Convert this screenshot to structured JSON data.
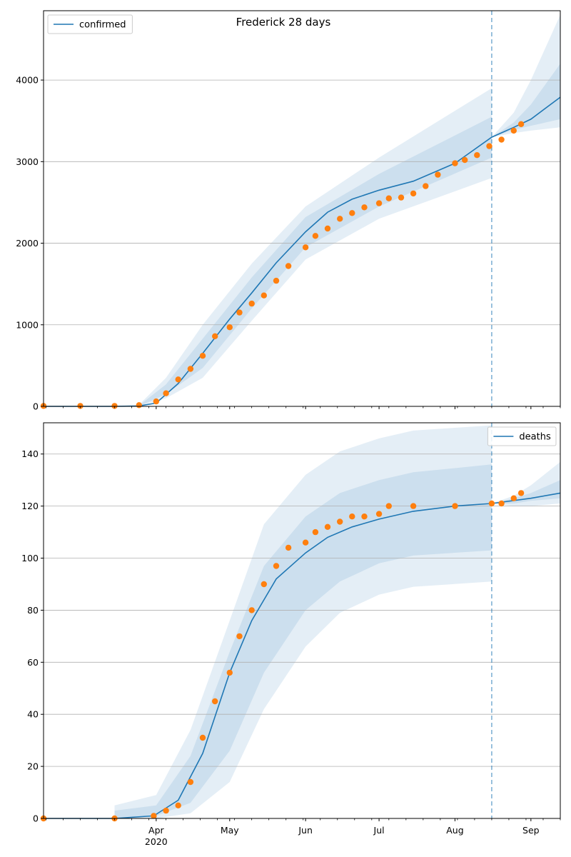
{
  "figure_title": "Frederick 28 days",
  "colors": {
    "model_line": "#1f77b4",
    "observed_points": "#ff7f0e",
    "band": "#1f77b4",
    "forecast_marker": "#1f77b4",
    "grid": "#b0b0b0"
  },
  "chart_data": [
    {
      "type": "line",
      "panel": "top",
      "title": "Frederick 28 days",
      "xlabel": "",
      "ylabel": "",
      "ylim": [
        0,
        4850
      ],
      "yticks": [
        0,
        1000,
        2000,
        3000,
        4000
      ],
      "grid": "horizontal",
      "legend": "top-left",
      "forecast_start": "2020-08-16",
      "series": [
        {
          "name": "confirmed",
          "kind": "model",
          "x": [
            "2020-02-15",
            "2020-03-01",
            "2020-03-15",
            "2020-03-25",
            "2020-04-01",
            "2020-04-10",
            "2020-04-20",
            "2020-05-01",
            "2020-05-10",
            "2020-05-20",
            "2020-06-01",
            "2020-06-10",
            "2020-06-20",
            "2020-07-01",
            "2020-07-15",
            "2020-08-01",
            "2020-08-16",
            "2020-08-25",
            "2020-09-01",
            "2020-09-13"
          ],
          "values": [
            0,
            0,
            0,
            5,
            40,
            280,
            650,
            1070,
            1390,
            1760,
            2140,
            2380,
            2540,
            2650,
            2760,
            2980,
            3300,
            3420,
            3520,
            3790
          ]
        },
        {
          "name": "",
          "kind": "observed",
          "x": [
            "2020-02-15",
            "2020-03-01",
            "2020-03-15",
            "2020-03-25",
            "2020-04-01",
            "2020-04-05",
            "2020-04-10",
            "2020-04-15",
            "2020-04-20",
            "2020-04-25",
            "2020-05-01",
            "2020-05-05",
            "2020-05-10",
            "2020-05-15",
            "2020-05-20",
            "2020-05-25",
            "2020-06-01",
            "2020-06-05",
            "2020-06-10",
            "2020-06-15",
            "2020-06-20",
            "2020-06-25",
            "2020-07-01",
            "2020-07-05",
            "2020-07-10",
            "2020-07-15",
            "2020-07-20",
            "2020-07-25",
            "2020-08-01",
            "2020-08-05",
            "2020-08-10",
            "2020-08-15",
            "2020-08-20",
            "2020-08-25",
            "2020-08-28"
          ],
          "values": [
            5,
            5,
            5,
            15,
            60,
            160,
            330,
            460,
            620,
            860,
            970,
            1150,
            1260,
            1360,
            1540,
            1720,
            1950,
            2090,
            2180,
            2300,
            2370,
            2440,
            2490,
            2550,
            2560,
            2610,
            2700,
            2840,
            2980,
            3020,
            3080,
            3190,
            3270,
            3380,
            3460
          ]
        }
      ],
      "bands": [
        {
          "x": [
            "2020-03-25",
            "2020-04-05",
            "2020-04-20",
            "2020-05-10",
            "2020-06-01",
            "2020-07-01",
            "2020-08-16"
          ],
          "lower": [
            0,
            100,
            350,
            1050,
            1800,
            2300,
            2800
          ],
          "upper": [
            20,
            350,
            1000,
            1750,
            2450,
            3050,
            3900
          ]
        },
        {
          "x": [
            "2020-03-25",
            "2020-04-05",
            "2020-04-20",
            "2020-05-10",
            "2020-06-01",
            "2020-07-01",
            "2020-08-16"
          ],
          "lower": [
            0,
            150,
            470,
            1200,
            1950,
            2450,
            3050
          ],
          "upper": [
            10,
            270,
            830,
            1580,
            2320,
            2850,
            3550
          ]
        },
        {
          "x": [
            "2020-08-16",
            "2020-08-25",
            "2020-09-01",
            "2020-09-13"
          ],
          "lower": [
            3300,
            3350,
            3380,
            3420
          ],
          "upper": [
            3300,
            3600,
            4000,
            4800
          ]
        },
        {
          "x": [
            "2020-08-16",
            "2020-08-25",
            "2020-09-01",
            "2020-09-13"
          ],
          "lower": [
            3300,
            3390,
            3440,
            3520
          ],
          "upper": [
            3300,
            3480,
            3700,
            4200
          ]
        }
      ],
      "x_ticks": [
        {
          "date": "2020-04-01",
          "label": "Apr",
          "sublabel": "2020"
        },
        {
          "date": "2020-05-01",
          "label": "May",
          "sublabel": ""
        },
        {
          "date": "2020-06-01",
          "label": "Jun",
          "sublabel": ""
        },
        {
          "date": "2020-07-01",
          "label": "Jul",
          "sublabel": ""
        },
        {
          "date": "2020-08-01",
          "label": "Aug",
          "sublabel": ""
        },
        {
          "date": "2020-09-01",
          "label": "Sep",
          "sublabel": ""
        }
      ],
      "show_x_labels": false
    },
    {
      "type": "line",
      "panel": "bottom",
      "title": "",
      "xlabel": "",
      "ylabel": "",
      "ylim": [
        0,
        152
      ],
      "yticks": [
        0,
        20,
        40,
        60,
        80,
        100,
        120,
        140
      ],
      "grid": "horizontal",
      "legend": "top-right",
      "forecast_start": "2020-08-16",
      "series": [
        {
          "name": "deaths",
          "kind": "model",
          "x": [
            "2020-02-15",
            "2020-03-15",
            "2020-03-31",
            "2020-04-10",
            "2020-04-20",
            "2020-05-01",
            "2020-05-10",
            "2020-05-20",
            "2020-06-01",
            "2020-06-10",
            "2020-06-20",
            "2020-07-01",
            "2020-07-15",
            "2020-08-01",
            "2020-08-16",
            "2020-09-01",
            "2020-09-13"
          ],
          "values": [
            0,
            0,
            1,
            7,
            25,
            56,
            76,
            92,
            102,
            108,
            112,
            115,
            118,
            120,
            121,
            123,
            125
          ]
        },
        {
          "name": "",
          "kind": "observed",
          "x": [
            "2020-02-15",
            "2020-03-15",
            "2020-03-31",
            "2020-04-05",
            "2020-04-10",
            "2020-04-15",
            "2020-04-20",
            "2020-04-25",
            "2020-05-01",
            "2020-05-05",
            "2020-05-10",
            "2020-05-15",
            "2020-05-20",
            "2020-05-25",
            "2020-06-01",
            "2020-06-05",
            "2020-06-10",
            "2020-06-15",
            "2020-06-20",
            "2020-06-25",
            "2020-07-01",
            "2020-07-05",
            "2020-07-15",
            "2020-08-01",
            "2020-08-16",
            "2020-08-20",
            "2020-08-25",
            "2020-08-28"
          ],
          "values": [
            0,
            0,
            1,
            3,
            5,
            14,
            31,
            45,
            56,
            70,
            80,
            90,
            97,
            104,
            106,
            110,
            112,
            114,
            116,
            116,
            117,
            120,
            120,
            120,
            121,
            121,
            123,
            125
          ]
        }
      ],
      "bands": [
        {
          "x": [
            "2020-03-15",
            "2020-04-01",
            "2020-04-15",
            "2020-05-01",
            "2020-05-15",
            "2020-06-01",
            "2020-06-15",
            "2020-07-01",
            "2020-07-15",
            "2020-08-16"
          ],
          "lower": [
            0,
            0,
            2,
            14,
            42,
            66,
            79,
            86,
            89,
            91
          ],
          "upper": [
            5,
            9,
            34,
            76,
            113,
            132,
            141,
            146,
            149,
            151
          ]
        },
        {
          "x": [
            "2020-03-15",
            "2020-04-01",
            "2020-04-15",
            "2020-05-01",
            "2020-05-15",
            "2020-06-01",
            "2020-06-15",
            "2020-07-01",
            "2020-07-15",
            "2020-08-16"
          ],
          "lower": [
            0,
            1,
            6,
            26,
            56,
            80,
            91,
            98,
            101,
            103
          ],
          "upper": [
            3,
            5,
            24,
            64,
            97,
            116,
            125,
            130,
            133,
            136
          ]
        },
        {
          "x": [
            "2020-08-16",
            "2020-08-25",
            "2020-09-01",
            "2020-09-13"
          ],
          "lower": [
            121,
            120,
            120,
            121
          ],
          "upper": [
            121,
            124,
            128,
            137
          ]
        },
        {
          "x": [
            "2020-08-16",
            "2020-08-25",
            "2020-09-01",
            "2020-09-13"
          ],
          "lower": [
            121,
            121,
            122,
            123
          ],
          "upper": [
            121,
            123,
            125,
            130
          ]
        }
      ],
      "x_ticks": [
        {
          "date": "2020-04-01",
          "label": "Apr",
          "sublabel": "2020"
        },
        {
          "date": "2020-05-01",
          "label": "May",
          "sublabel": ""
        },
        {
          "date": "2020-06-01",
          "label": "Jun",
          "sublabel": ""
        },
        {
          "date": "2020-07-01",
          "label": "Jul",
          "sublabel": ""
        },
        {
          "date": "2020-08-01",
          "label": "Aug",
          "sublabel": ""
        },
        {
          "date": "2020-09-01",
          "label": "Sep",
          "sublabel": ""
        }
      ],
      "show_x_labels": true
    }
  ]
}
